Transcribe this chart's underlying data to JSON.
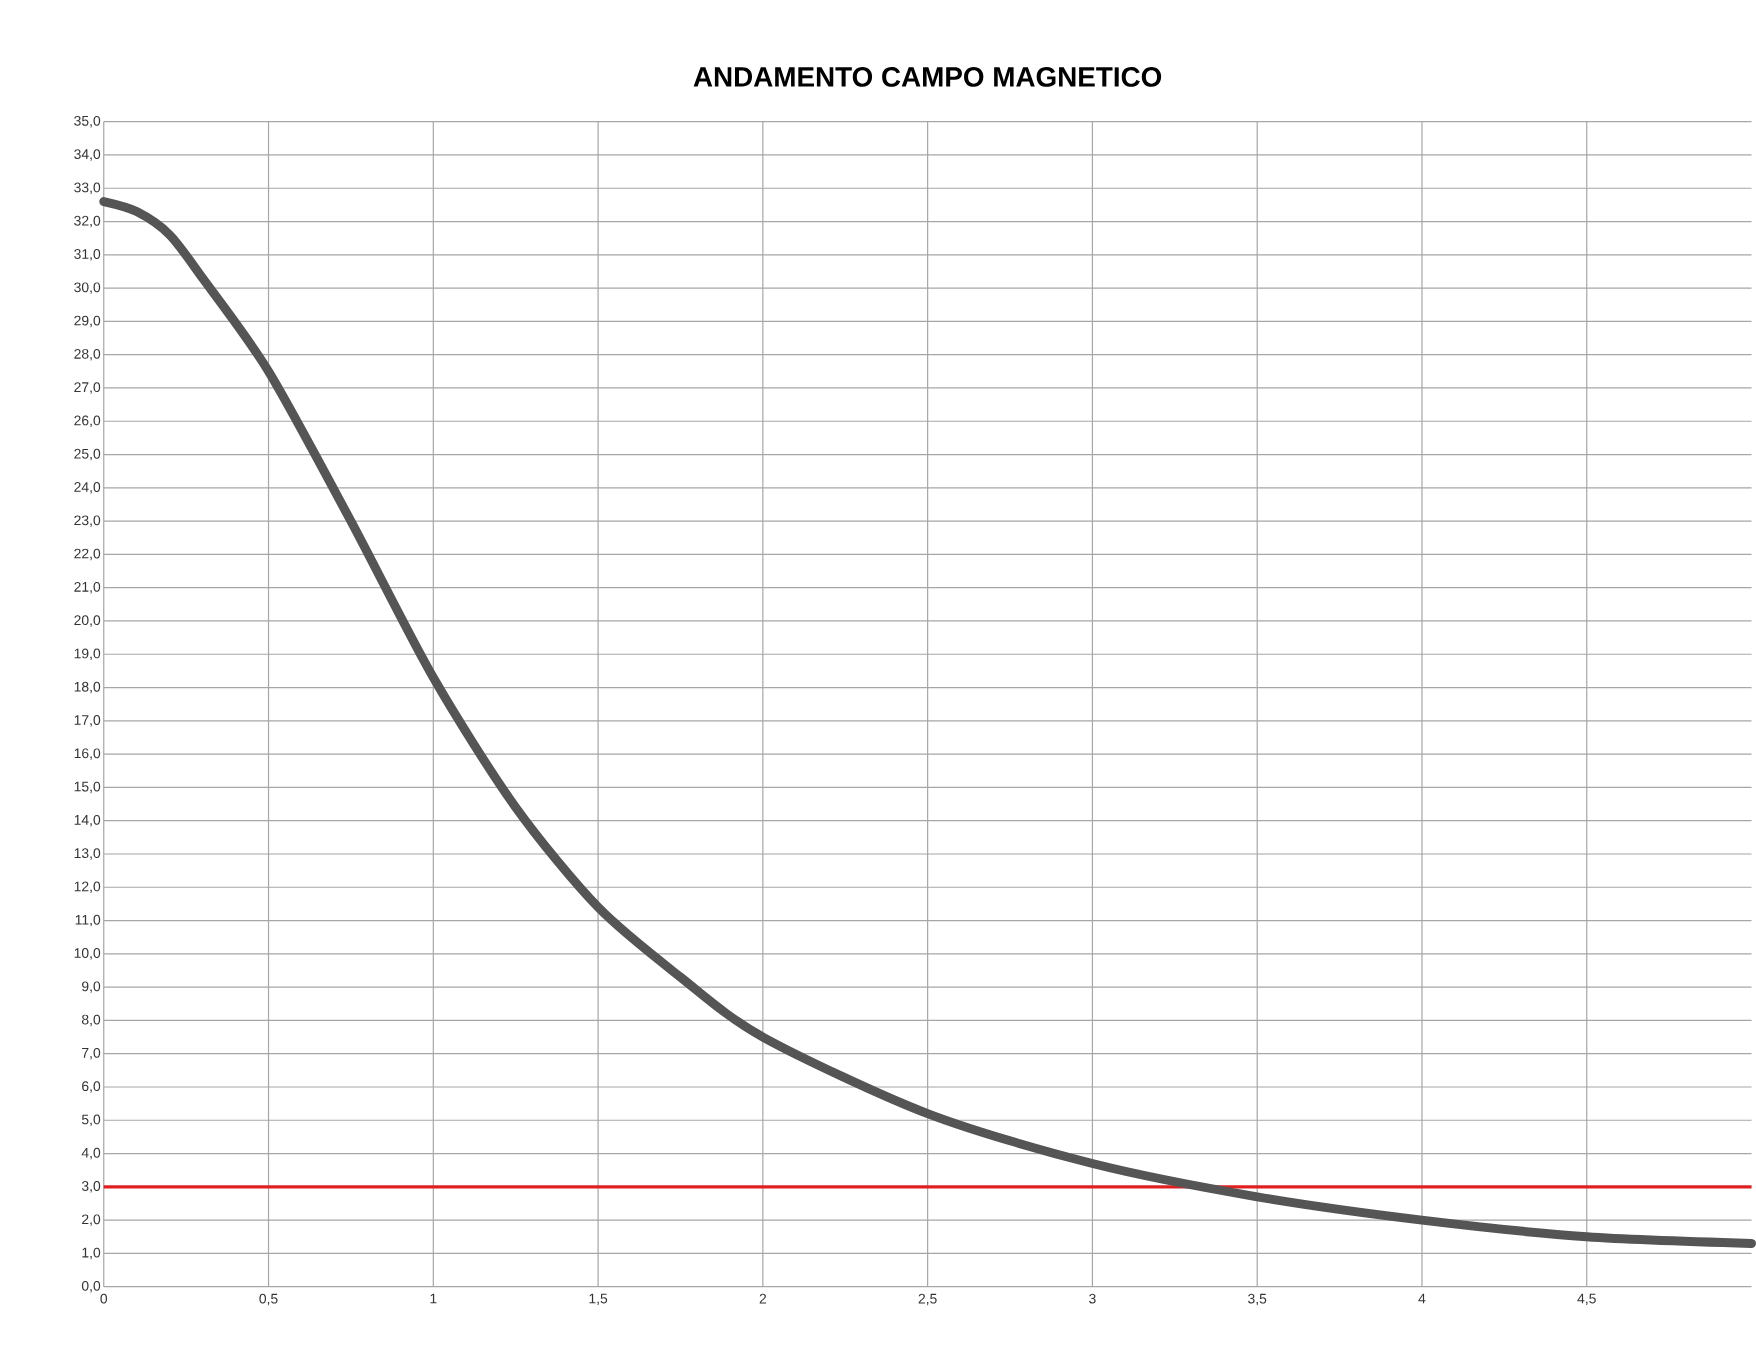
{
  "chart_data": {
    "type": "line",
    "title": "ANDAMENTO CAMPO MAGNETICO",
    "x": [
      0,
      0.1,
      0.2,
      0.3,
      0.5,
      0.75,
      1,
      1.25,
      1.5,
      1.75,
      2,
      2.5,
      3,
      3.5,
      4,
      4.5,
      5
    ],
    "series": [
      {
        "color": "#555555",
        "values": [
          32.6,
          32.3,
          31.6,
          30.3,
          27.5,
          23.0,
          18.3,
          14.4,
          11.4,
          9.3,
          7.5,
          5.2,
          3.7,
          2.7,
          2.0,
          1.5,
          1.3
        ]
      }
    ],
    "xlim": [
      0,
      5
    ],
    "xticks": [
      {
        "value": 0,
        "label": "0"
      },
      {
        "value": 0.5,
        "label": "0,5"
      },
      {
        "value": 1,
        "label": "1"
      },
      {
        "value": 1.5,
        "label": "1,5"
      },
      {
        "value": 2,
        "label": "2"
      },
      {
        "value": 2.5,
        "label": "2,5"
      },
      {
        "value": 3,
        "label": "3"
      },
      {
        "value": 3.5,
        "label": "3,5"
      },
      {
        "value": 4,
        "label": "4"
      },
      {
        "value": 4.5,
        "label": "4,5"
      }
    ],
    "ylim": [
      0,
      35
    ],
    "yticks": [
      {
        "value": 0,
        "label": "0,0"
      },
      {
        "value": 1,
        "label": "1,0"
      },
      {
        "value": 2,
        "label": "2,0"
      },
      {
        "value": 3,
        "label": "3,0"
      },
      {
        "value": 4,
        "label": "4,0"
      },
      {
        "value": 5,
        "label": "5,0"
      },
      {
        "value": 6,
        "label": "6,0"
      },
      {
        "value": 7,
        "label": "7,0"
      },
      {
        "value": 8,
        "label": "8,0"
      },
      {
        "value": 9,
        "label": "9,0"
      },
      {
        "value": 10,
        "label": "10,0"
      },
      {
        "value": 11,
        "label": "11,0"
      },
      {
        "value": 12,
        "label": "12,0"
      },
      {
        "value": 13,
        "label": "13,0"
      },
      {
        "value": 14,
        "label": "14,0"
      },
      {
        "value": 15,
        "label": "15,0"
      },
      {
        "value": 16,
        "label": "16,0"
      },
      {
        "value": 17,
        "label": "17,0"
      },
      {
        "value": 18,
        "label": "18,0"
      },
      {
        "value": 19,
        "label": "19,0"
      },
      {
        "value": 20,
        "label": "20,0"
      },
      {
        "value": 21,
        "label": "21,0"
      },
      {
        "value": 22,
        "label": "22,0"
      },
      {
        "value": 23,
        "label": "23,0"
      },
      {
        "value": 24,
        "label": "24,0"
      },
      {
        "value": 25,
        "label": "25,0"
      },
      {
        "value": 26,
        "label": "26,0"
      },
      {
        "value": 27,
        "label": "27,0"
      },
      {
        "value": 28,
        "label": "28,0"
      },
      {
        "value": 29,
        "label": "29,0"
      },
      {
        "value": 30,
        "label": "30,0"
      },
      {
        "value": 31,
        "label": "31,0"
      },
      {
        "value": 32,
        "label": "32,0"
      },
      {
        "value": 33,
        "label": "33,0"
      },
      {
        "value": 34,
        "label": "34,0"
      },
      {
        "value": 35,
        "label": "35,0"
      }
    ],
    "ref_lines": [
      {
        "axis": "y",
        "value": 3,
        "color": "#e02020"
      }
    ],
    "grid": true,
    "marker": "none",
    "line_style": "solid"
  }
}
